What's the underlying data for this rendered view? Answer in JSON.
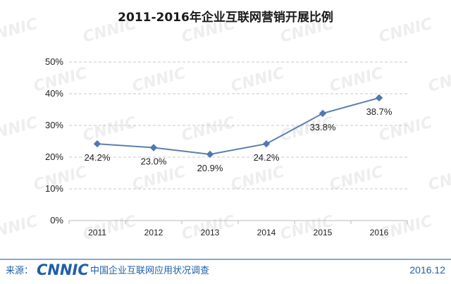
{
  "chart_data": {
    "type": "line",
    "title": "2011-2016年企业互联网营销开展比例",
    "categories": [
      "2011",
      "2012",
      "2013",
      "2014",
      "2015",
      "2016"
    ],
    "values": [
      24.2,
      23.0,
      20.9,
      24.2,
      33.8,
      38.7
    ],
    "data_labels": [
      "24.2%",
      "23.0%",
      "20.9%",
      "24.2%",
      "33.8%",
      "38.7%"
    ],
    "ylim": [
      0,
      50
    ],
    "yticks": [
      0,
      10,
      20,
      30,
      40,
      50
    ],
    "ytick_labels": [
      "0%",
      "10%",
      "20%",
      "30%",
      "40%",
      "50%"
    ],
    "grid": true,
    "series_color": "#4f79b3"
  },
  "footer": {
    "source_label": "来源：",
    "logo": "CNNIC",
    "report_name": "中国企业互联网应用状况调查",
    "date": "2016.12"
  },
  "watermark": {
    "text": "CNNIC"
  },
  "colors": {
    "brand": "#1f5fa8",
    "line": "#5b7fb0"
  }
}
